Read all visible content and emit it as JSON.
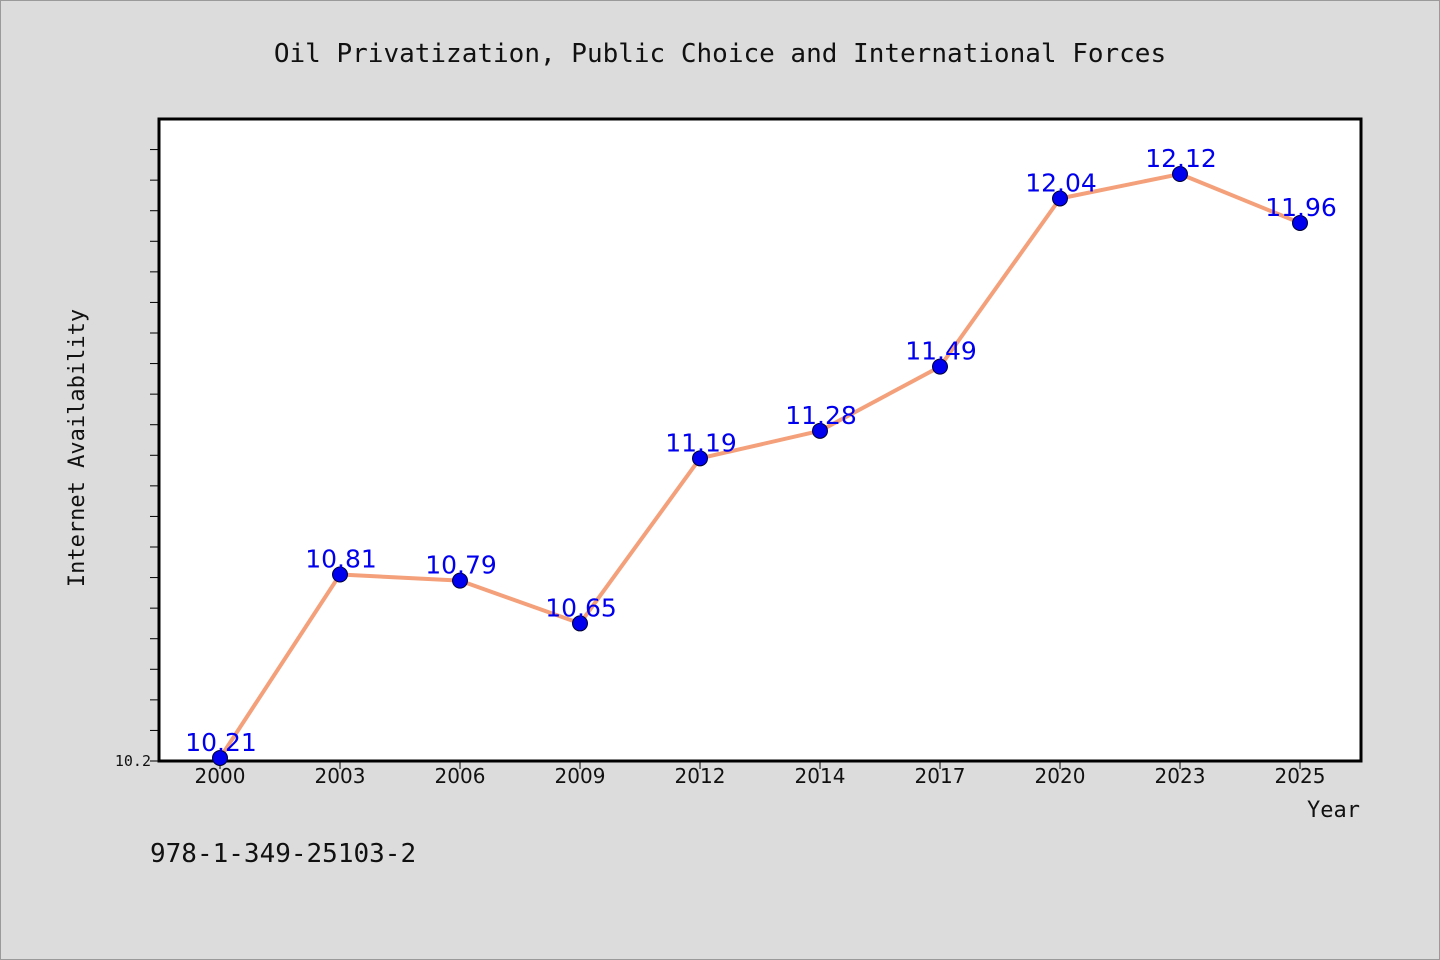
{
  "chart_data": {
    "type": "line",
    "title": "Oil Privatization, Public Choice and International Forces",
    "xlabel": "Year",
    "ylabel": "Internet Availability",
    "categories": [
      "2000",
      "2003",
      "2006",
      "2009",
      "2012",
      "2014",
      "2017",
      "2020",
      "2023",
      "2025"
    ],
    "values": [
      10.21,
      10.81,
      10.79,
      10.65,
      11.19,
      11.28,
      11.49,
      12.04,
      12.12,
      11.96
    ],
    "value_labels": [
      "10.21",
      "10.81",
      "10.79",
      "10.65",
      "11.19",
      "11.28",
      "11.49",
      "12.04",
      "12.12",
      "11.96"
    ],
    "ytick_labels": [
      "10.2"
    ],
    "ylim": [
      10.2,
      12.3
    ],
    "grid": false,
    "legend": "none",
    "line_color": "#f4a07a",
    "marker_color": "#0000ee",
    "label_color": "#0000ee"
  },
  "footer": {
    "isbn": "978-1-349-25103-2"
  }
}
